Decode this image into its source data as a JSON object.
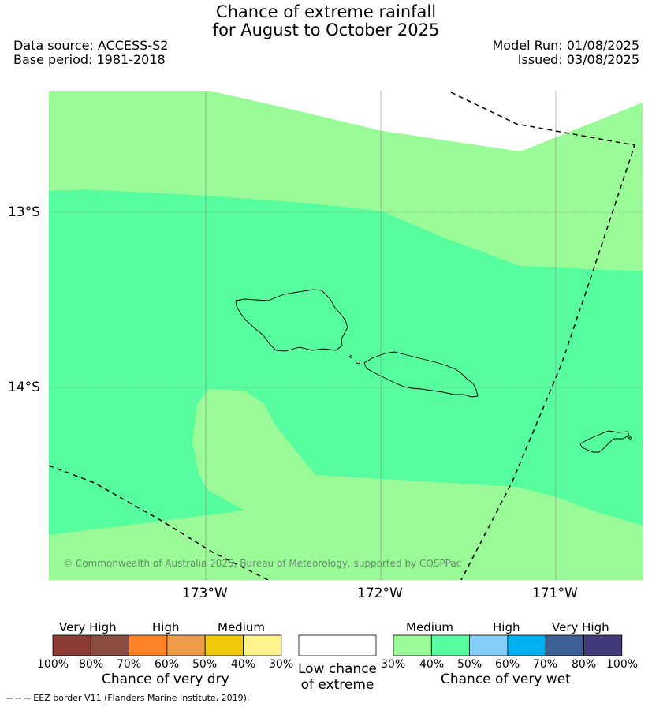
{
  "header": {
    "title_line1": "Chance of extreme rainfall",
    "title_line2": "for August to October 2025",
    "data_source": "Data source: ACCESS-S2",
    "base_period": "Base period: 1981-2018",
    "model_run": "Model Run: 01/08/2025",
    "issued": "Issued: 03/08/2025"
  },
  "map": {
    "lat_labels": [
      "13°S",
      "14°S"
    ],
    "lon_labels": [
      "173°W",
      "172°W",
      "171°W"
    ],
    "copyright": "© Commonwealth of Australia 2025, Bureau of Meteorology, supported by COSPPac",
    "colors": {
      "land_outline": "#000000",
      "medium_30_40": "#9bfa98",
      "medium_40_50": "#57fc9f",
      "gridline": "#9e9e9e"
    }
  },
  "legend": {
    "dry": {
      "headings": [
        "Very High",
        "High",
        "Medium"
      ],
      "ticks": [
        "100%",
        "80%",
        "70%",
        "60%",
        "50%",
        "40%",
        "30%"
      ],
      "caption": "Chance of very dry",
      "colors": [
        "#8c3b35",
        "#8b4d3f",
        "#fd8327",
        "#ef9c4a",
        "#f0c90a",
        "#fef38c"
      ]
    },
    "neutral": {
      "caption_line1": "Low chance",
      "caption_line2": "of extreme",
      "color": "#ffffff"
    },
    "wet": {
      "headings": [
        "Medium",
        "High",
        "Very High"
      ],
      "ticks": [
        "30%",
        "40%",
        "50%",
        "60%",
        "70%",
        "80%",
        "100%"
      ],
      "caption": "Chance of very wet",
      "colors": [
        "#9bfa98",
        "#57fc9f",
        "#86cefa",
        "#00b0f0",
        "#3a6096",
        "#423b7a"
      ]
    }
  },
  "footer": {
    "eez_note": "-- -- -- EEZ border V11 (Flanders Marine Institute, 2019)."
  }
}
